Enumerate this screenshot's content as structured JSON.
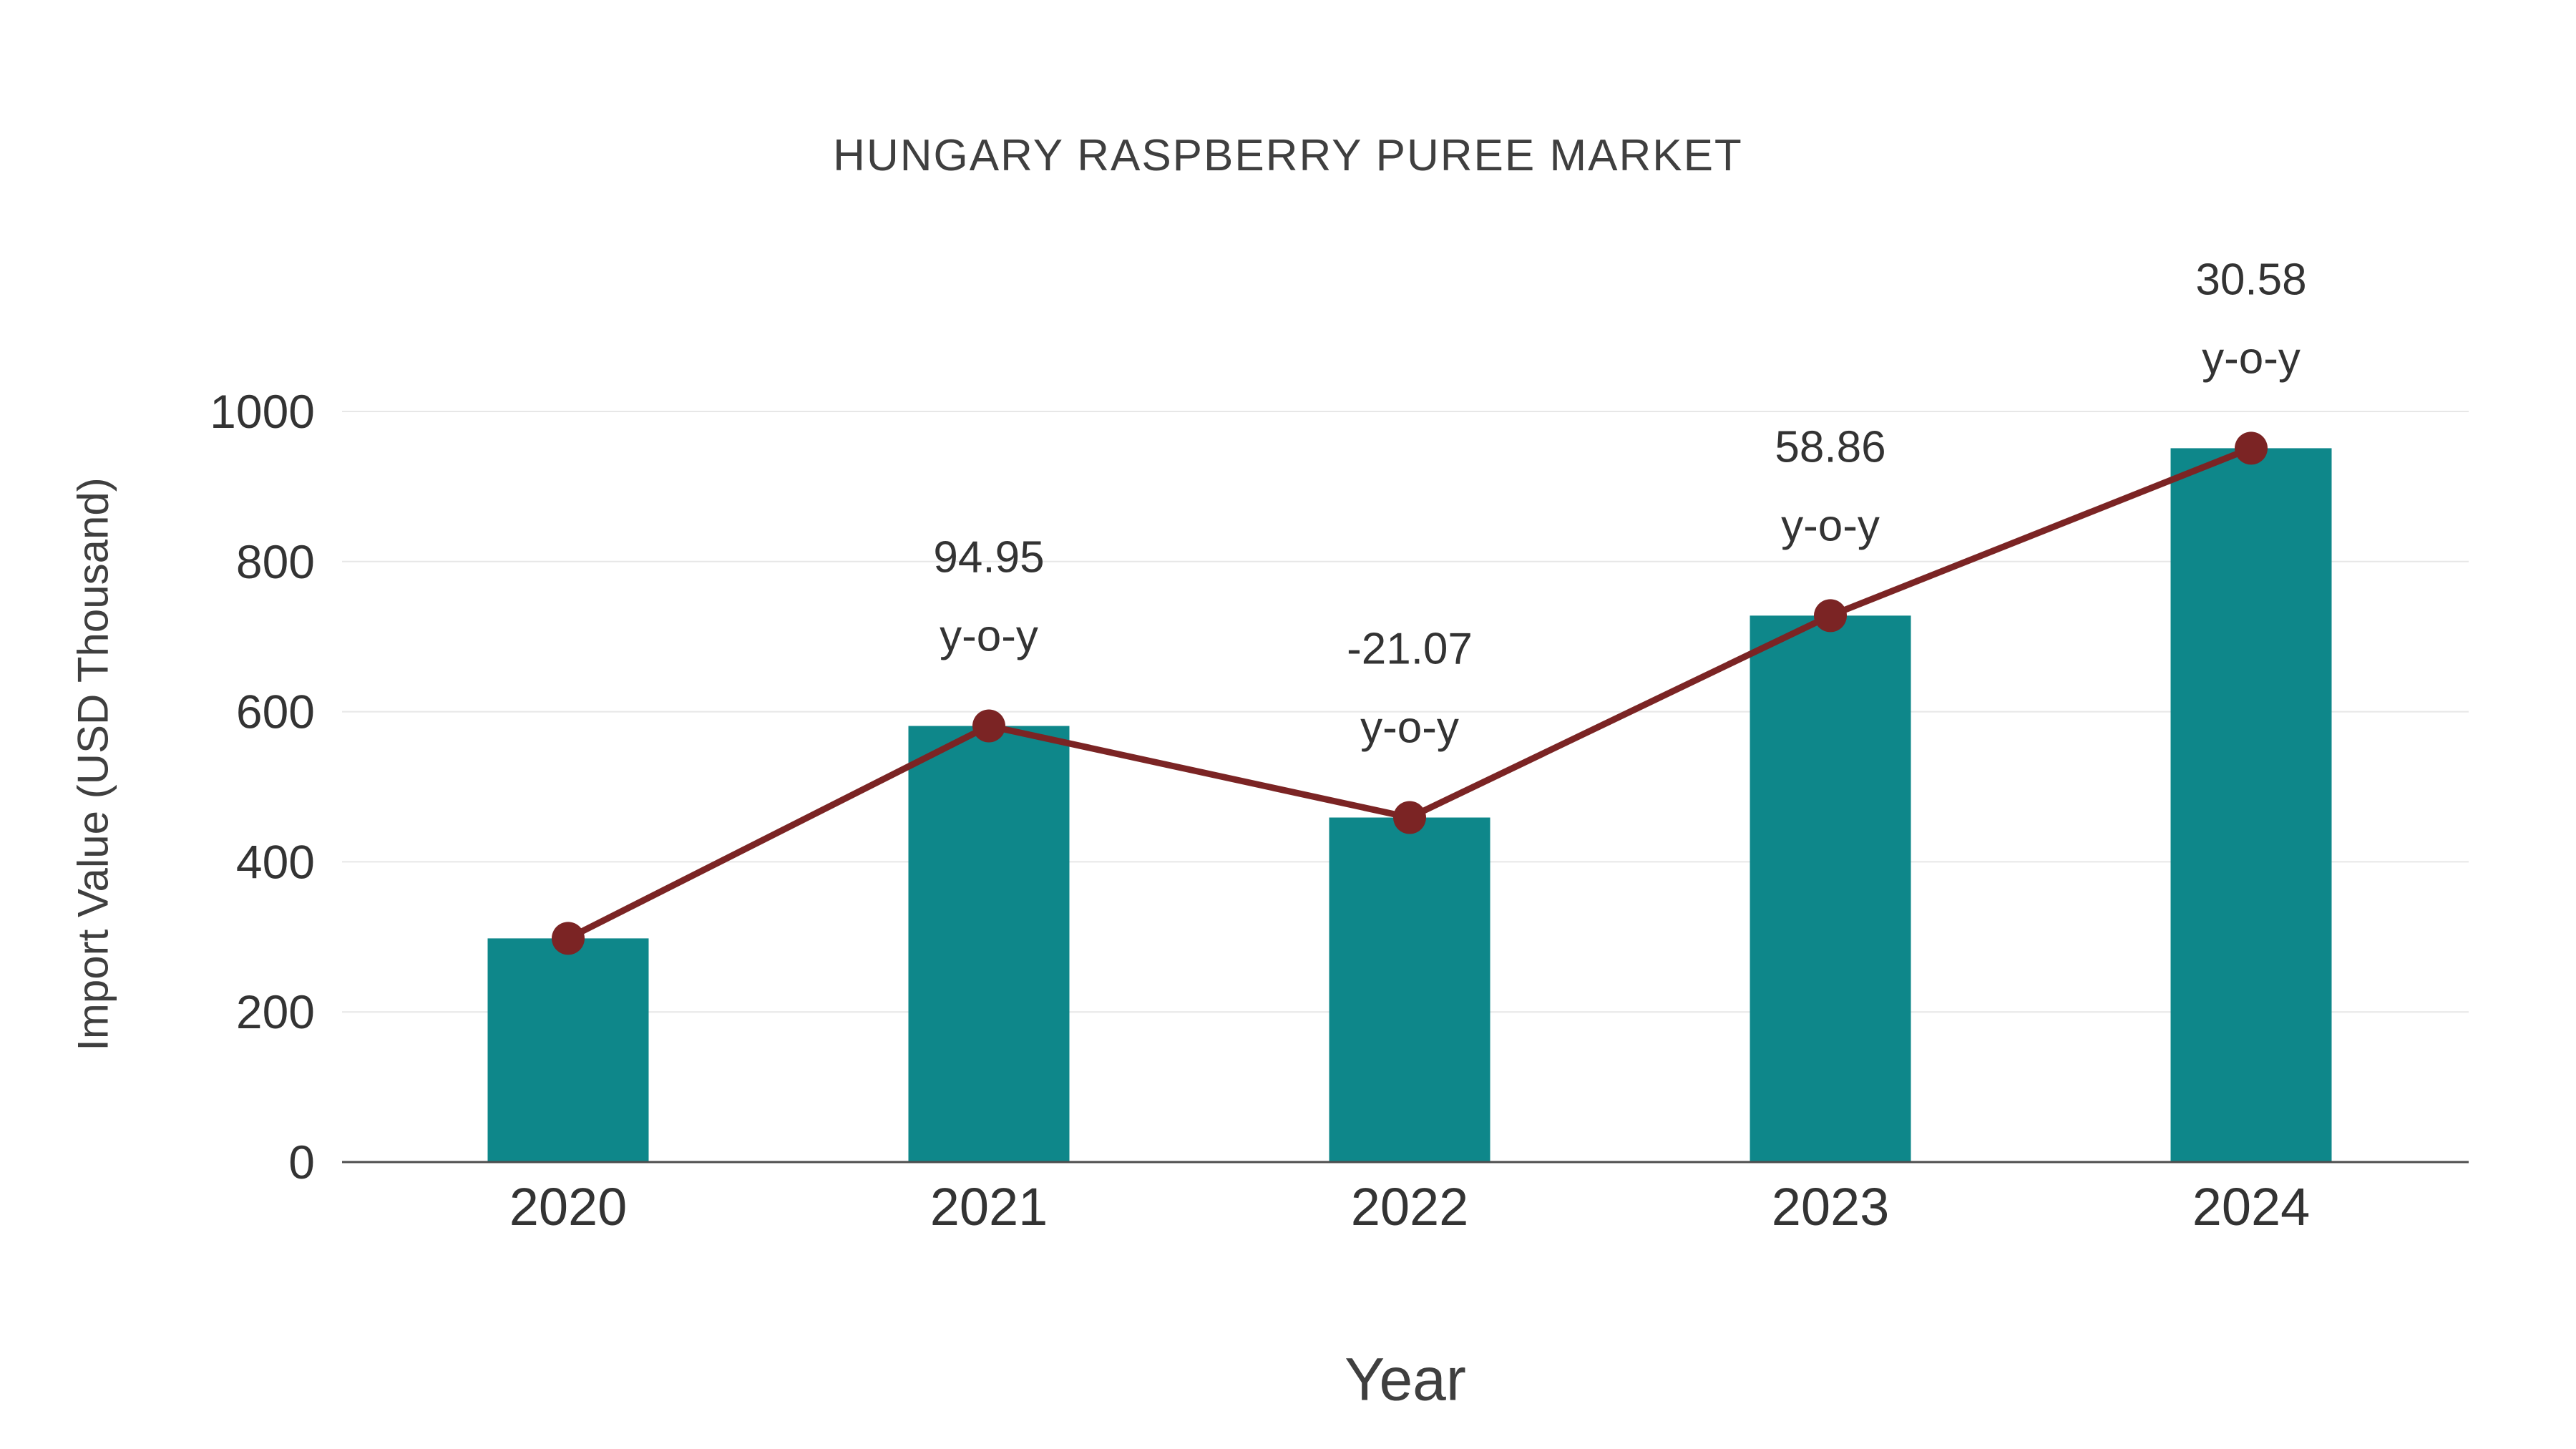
{
  "chart_data": {
    "type": "combo",
    "title": "HUNGARY RASPBERRY PUREE MARKET",
    "xlabel": "Year",
    "ylabel": "Import Value (USD Thousand)",
    "categories": [
      "2020",
      "2021",
      "2022",
      "2023",
      "2024"
    ],
    "series": [
      {
        "name": "Import Value bars",
        "type": "bar",
        "values": [
          298,
          581,
          459,
          728,
          951
        ]
      },
      {
        "name": "Import Value trend line",
        "type": "line",
        "values": [
          298,
          581,
          459,
          728,
          951
        ]
      }
    ],
    "annotations": [
      {
        "category": "2021",
        "text": "94.95",
        "subtext": "y-o-y"
      },
      {
        "category": "2022",
        "text": "-21.07",
        "subtext": "y-o-y"
      },
      {
        "category": "2023",
        "text": "58.86",
        "subtext": "y-o-y"
      },
      {
        "category": "2024",
        "text": "30.58",
        "subtext": "y-o-y"
      }
    ],
    "yticks": [
      0,
      200,
      400,
      600,
      800,
      1000
    ],
    "ylim": [
      0,
      1100
    ],
    "grid": true,
    "legend": "none",
    "colors": {
      "bar": "#0e878a",
      "line": "#7b2424",
      "marker": "#7b2424",
      "text": "#333333",
      "grid": "#e7e7e7",
      "axis": "#4d4d4d"
    }
  }
}
